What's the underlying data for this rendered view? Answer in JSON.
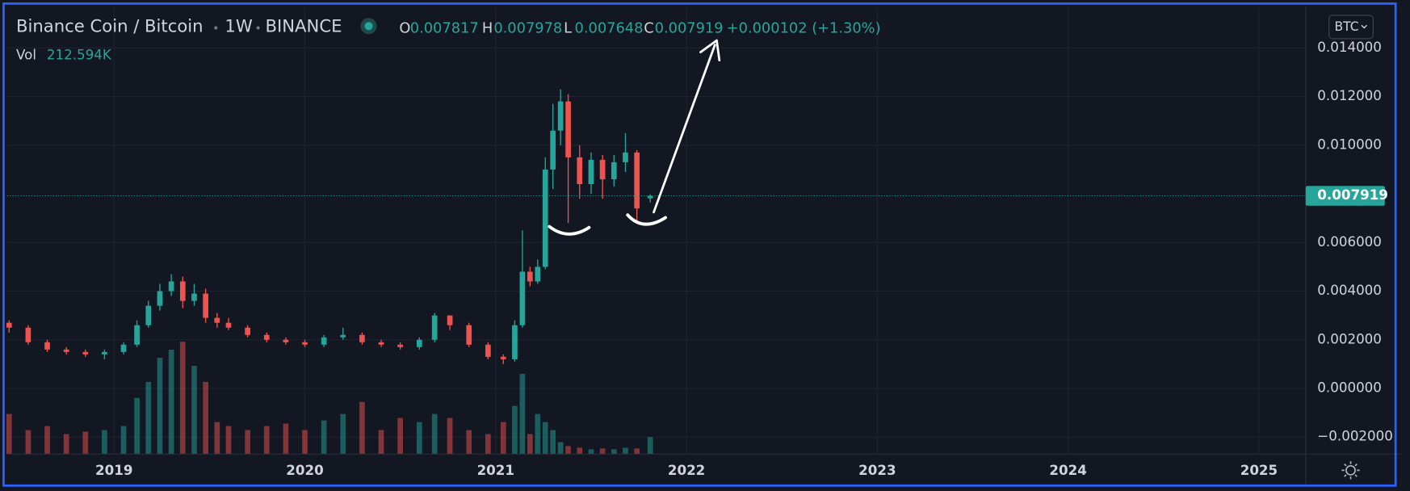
{
  "chart_data": {
    "type": "candlestick",
    "title": "Binance Coin / Bitcoin",
    "interval": "1W",
    "exchange": "BINANCE",
    "currency": "BTC",
    "legend": {
      "o_label": "O",
      "o": 0.007817,
      "h_label": "H",
      "h": 0.007978,
      "l_label": "L",
      "l": 0.007648,
      "c_label": "C",
      "c": 0.007919,
      "change": "+0.000102 (+1.30%)",
      "vol_label": "Vol",
      "vol": "212.594K"
    },
    "last_price": 0.007919,
    "up_color": "#26a69a",
    "down_color": "#ef5350",
    "grid": true,
    "x": [
      2018.45,
      2018.55,
      2018.65,
      2018.75,
      2018.85,
      2018.95,
      2019.05,
      2019.12,
      2019.18,
      2019.24,
      2019.3,
      2019.36,
      2019.42,
      2019.48,
      2019.54,
      2019.6,
      2019.7,
      2019.8,
      2019.9,
      2020.0,
      2020.1,
      2020.2,
      2020.3,
      2020.4,
      2020.5,
      2020.6,
      2020.68,
      2020.76,
      2020.86,
      2020.96,
      2021.04,
      2021.1,
      2021.14,
      2021.18,
      2021.22,
      2021.26,
      2021.3,
      2021.34,
      2021.38,
      2021.44,
      2021.5,
      2021.56,
      2021.62,
      2021.68,
      2021.74,
      2021.81
    ],
    "open": [
      0.0027,
      0.0025,
      0.0019,
      0.0016,
      0.0015,
      0.0014,
      0.0015,
      0.0018,
      0.0026,
      0.0034,
      0.004,
      0.0044,
      0.0036,
      0.0039,
      0.0029,
      0.0027,
      0.0025,
      0.0022,
      0.002,
      0.0019,
      0.0018,
      0.0021,
      0.0022,
      0.0019,
      0.0018,
      0.0017,
      0.002,
      0.003,
      0.0026,
      0.0018,
      0.0013,
      0.0012,
      0.0026,
      0.0048,
      0.0044,
      0.005,
      0.009,
      0.0106,
      0.0118,
      0.0095,
      0.0084,
      0.0094,
      0.0086,
      0.0093,
      0.0097,
      0.007817
    ],
    "high": [
      0.0028,
      0.0026,
      0.002,
      0.0017,
      0.0016,
      0.0016,
      0.0019,
      0.0028,
      0.0036,
      0.0043,
      0.0047,
      0.0046,
      0.0043,
      0.0041,
      0.0031,
      0.0029,
      0.0026,
      0.0023,
      0.0021,
      0.002,
      0.0022,
      0.0025,
      0.0023,
      0.002,
      0.0019,
      0.0021,
      0.0031,
      0.003,
      0.0027,
      0.0019,
      0.0014,
      0.0028,
      0.0065,
      0.005,
      0.0053,
      0.0095,
      0.0117,
      0.0123,
      0.0121,
      0.01,
      0.0097,
      0.0096,
      0.0096,
      0.0105,
      0.0098,
      0.007978
    ],
    "low": [
      0.0023,
      0.0018,
      0.0015,
      0.0014,
      0.0013,
      0.0012,
      0.0014,
      0.0017,
      0.0025,
      0.0032,
      0.0038,
      0.0033,
      0.0034,
      0.0027,
      0.0025,
      0.0024,
      0.0021,
      0.0019,
      0.0018,
      0.0017,
      0.0017,
      0.002,
      0.0018,
      0.0017,
      0.0016,
      0.0016,
      0.0019,
      0.0024,
      0.0017,
      0.0012,
      0.001,
      0.0011,
      0.0025,
      0.0042,
      0.0043,
      0.0049,
      0.0082,
      0.01,
      0.0068,
      0.0078,
      0.008,
      0.0078,
      0.0083,
      0.0089,
      0.0068,
      0.007648
    ],
    "close": [
      0.0025,
      0.0019,
      0.0016,
      0.0015,
      0.0014,
      0.0015,
      0.0018,
      0.0026,
      0.0034,
      0.004,
      0.0044,
      0.0036,
      0.0039,
      0.0029,
      0.0027,
      0.0025,
      0.0022,
      0.002,
      0.0019,
      0.0018,
      0.0021,
      0.0022,
      0.0019,
      0.0018,
      0.0017,
      0.002,
      0.003,
      0.0026,
      0.0018,
      0.0013,
      0.0012,
      0.0026,
      0.0048,
      0.0044,
      0.005,
      0.009,
      0.0106,
      0.0118,
      0.0095,
      0.0084,
      0.0094,
      0.0086,
      0.0093,
      0.0097,
      0.0074,
      0.007919
    ],
    "volume": [
      500,
      300,
      350,
      250,
      280,
      300,
      350,
      700,
      900,
      1200,
      1300,
      1400,
      1100,
      900,
      400,
      350,
      300,
      350,
      380,
      300,
      420,
      500,
      650,
      300,
      450,
      400,
      500,
      450,
      300,
      250,
      400,
      600,
      1000,
      250,
      500,
      400,
      300,
      150,
      100,
      80,
      60,
      70,
      60,
      80,
      70,
      212.594
    ],
    "xlim": [
      2018.44,
      2025.245
    ],
    "xticks": [
      2019,
      2020,
      2021,
      2022,
      2023,
      2024,
      2025
    ],
    "ylim": [
      -0.0027,
      0.0156
    ],
    "yticks": [
      {
        "value": 0.014,
        "label": "0.014000"
      },
      {
        "value": 0.012,
        "label": "0.012000"
      },
      {
        "value": 0.01,
        "label": "0.010000"
      },
      {
        "value": 0.006,
        "label": "0.006000"
      },
      {
        "value": 0.004,
        "label": "0.004000"
      },
      {
        "value": 0.002,
        "label": "0.002000"
      },
      {
        "value": 0,
        "label": "0.000000"
      },
      {
        "value": -0.002,
        "label": "−0.002000"
      }
    ]
  }
}
